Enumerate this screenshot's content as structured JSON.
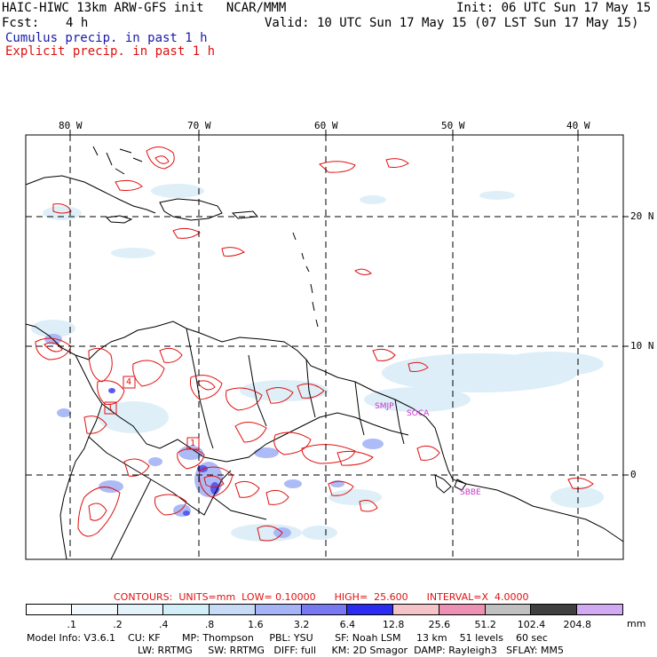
{
  "header": {
    "title": "HAIC-HIWC 13km ARW-GFS init   NCAR/MMM",
    "init": "Init: 06 UTC Sun 17 May 15",
    "fcst_label": "Fcst:",
    "fcst_value": "4 h",
    "valid": "Valid: 10 UTC Sun 17 May 15 (07 LST Sun 17 May 15)",
    "cumulus_label": "Cumulus precip. in past 1 h",
    "explicit_label": "Explicit precip. in past 1 h",
    "cumulus_color": "#1a1aa6",
    "explicit_color": "#e01010"
  },
  "map": {
    "lon_labels": [
      "80 W",
      "70 W",
      "60 W",
      "50 W",
      "40 W"
    ],
    "lat_labels": [
      "20 N",
      "10 N",
      "0"
    ],
    "stations": [
      "SMJP",
      "SOCA",
      "SBBE"
    ],
    "station_color": "#cc33cc",
    "box_labels": [
      "4",
      "1",
      "1"
    ]
  },
  "contours": {
    "label": "CONTOURS:  UNITS=mm  LOW= 0.10000      HIGH=  25.600      INTERVAL=X  4.0000"
  },
  "colorbar": {
    "units": "mm",
    "ticks": [
      ".1",
      ".2",
      ".4",
      ".8",
      "1.6",
      "3.2",
      "6.4",
      "12.8",
      "25.6",
      "51.2",
      "102.4",
      "204.8"
    ],
    "colors": [
      "#ffffff",
      "#f2f8fc",
      "#e4f2fa",
      "#d2eef8",
      "#c6dcf6",
      "#a4b4f6",
      "#7878f2",
      "#2c2cf0",
      "#f4c4c8",
      "#ee90b4",
      "#c0c0c0",
      "#404040",
      "#d2aaf4"
    ]
  },
  "footer": {
    "line1": "Model Info: V3.6.1    CU: KF       MP: Thompson     PBL: YSU       SF: Noah LSM     13 km    51 levels    60 sec",
    "line2": "LW: RRTMG     SW: RRTMG   DIFF: full     KM: 2D Smagor  DAMP: Rayleigh3   SFLAY: MM5"
  }
}
